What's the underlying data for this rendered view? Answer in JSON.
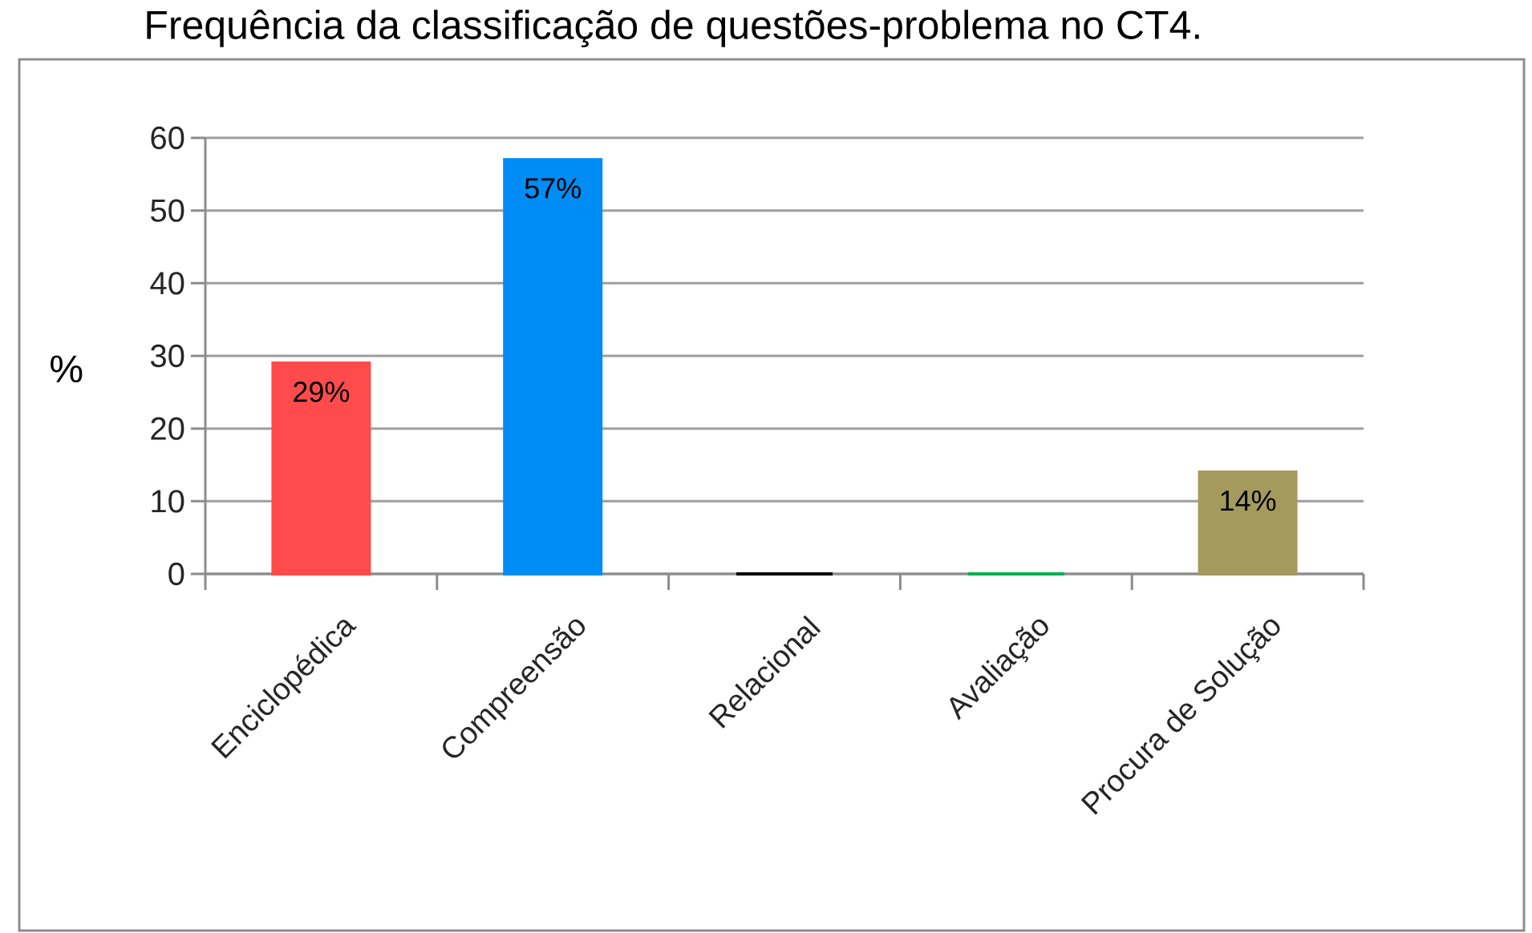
{
  "chart_data": {
    "type": "bar",
    "title": "Frequência da classificação de questões-problema no CT4.",
    "ylabel": "%",
    "categories": [
      "Enciclopédica",
      "Compreensão",
      "Relacional",
      "Avaliação",
      "Procura de Solução"
    ],
    "values": [
      29,
      57,
      0,
      0,
      14
    ],
    "colors": [
      "#ff4b4b",
      "#008cf5",
      "#000000",
      "#00b050",
      "#a59a5e"
    ],
    "value_labels": [
      "29%",
      "57%",
      null,
      null,
      "14%"
    ],
    "ylim": [
      0,
      60
    ],
    "yticks": [
      0,
      10,
      20,
      30,
      40,
      50,
      60
    ],
    "grid": "y"
  }
}
